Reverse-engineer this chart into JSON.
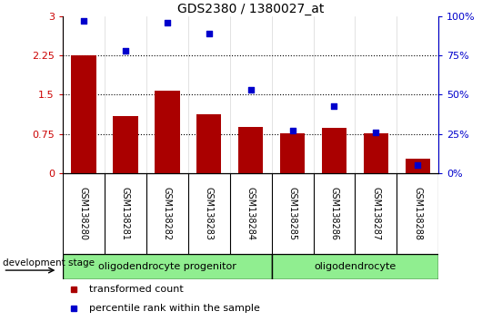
{
  "title": "GDS2380 / 1380027_at",
  "samples": [
    "GSM138280",
    "GSM138281",
    "GSM138282",
    "GSM138283",
    "GSM138284",
    "GSM138285",
    "GSM138286",
    "GSM138287",
    "GSM138288"
  ],
  "red_values": [
    2.25,
    1.1,
    1.57,
    1.13,
    0.88,
    0.77,
    0.87,
    0.77,
    0.28
  ],
  "blue_values": [
    97,
    78,
    96,
    89,
    53,
    27,
    43,
    26,
    5
  ],
  "left_ylim": [
    0,
    3
  ],
  "right_ylim": [
    0,
    100
  ],
  "left_yticks": [
    0,
    0.75,
    1.5,
    2.25,
    3
  ],
  "right_yticks": [
    0,
    25,
    50,
    75,
    100
  ],
  "left_ytick_labels": [
    "0",
    "0.75",
    "1.5",
    "2.25",
    "3"
  ],
  "right_ytick_labels": [
    "0%",
    "25%",
    "50%",
    "75%",
    "100%"
  ],
  "bar_color": "#aa0000",
  "scatter_color": "#0000cc",
  "background_color": "#ffffff",
  "left_axis_color": "#cc0000",
  "right_axis_color": "#0000cc",
  "dotted_ticks": [
    0.75,
    1.5,
    2.25
  ],
  "legend_items": [
    "transformed count",
    "percentile rank within the sample"
  ],
  "dev_stage_label": "development stage",
  "group1_label": "oligodendrocyte progenitor",
  "group1_sample_count": 5,
  "group2_label": "oligodendrocyte",
  "group2_sample_count": 4,
  "group_color": "#90EE90",
  "xlabel_bg": "#c8c8c8",
  "cell_border_color": "#888888"
}
